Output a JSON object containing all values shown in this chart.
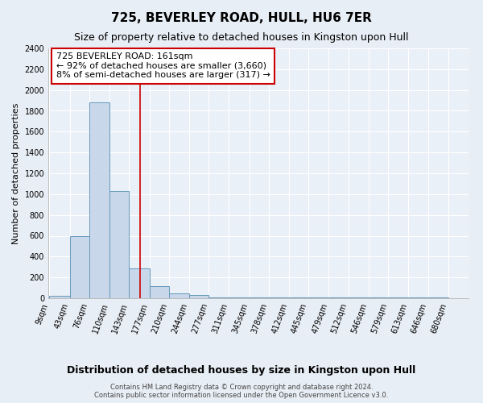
{
  "title": "725, BEVERLEY ROAD, HULL, HU6 7ER",
  "subtitle": "Size of property relative to detached houses in Kingston upon Hull",
  "xlabel_dist": "Distribution of detached houses by size in Kingston upon Hull",
  "ylabel": "Number of detached properties",
  "footnote": "Contains HM Land Registry data © Crown copyright and database right 2024.\nContains public sector information licensed under the Open Government Licence v3.0.",
  "bar_edges": [
    9,
    43,
    76,
    110,
    143,
    177,
    210,
    244,
    277,
    311,
    345,
    378,
    412,
    445,
    479,
    512,
    546,
    579,
    613,
    646,
    680
  ],
  "bar_heights": [
    20,
    600,
    1880,
    1030,
    290,
    120,
    50,
    30,
    5,
    5,
    5,
    5,
    5,
    5,
    5,
    5,
    5,
    5,
    5,
    5
  ],
  "bar_color": "#c8d8ea",
  "bar_edge_color": "#6699bb",
  "red_line_x": 161,
  "red_line_color": "#cc0000",
  "annotation_text": "725 BEVERLEY ROAD: 161sqm\n← 92% of detached houses are smaller (3,660)\n8% of semi-detached houses are larger (317) →",
  "annotation_box_color": "#ffffff",
  "annotation_border_color": "#cc0000",
  "ylim": [
    0,
    2400
  ],
  "yticks": [
    0,
    200,
    400,
    600,
    800,
    1000,
    1200,
    1400,
    1600,
    1800,
    2000,
    2200,
    2400
  ],
  "bg_color": "#e8eef5",
  "plot_bg_color": "#eaf0f8",
  "grid_color": "#ffffff",
  "title_fontsize": 11,
  "subtitle_fontsize": 9,
  "tick_label_fontsize": 7,
  "ylabel_fontsize": 8,
  "xlabel_dist_fontsize": 9,
  "annotation_fontsize": 8,
  "footnote_fontsize": 6
}
